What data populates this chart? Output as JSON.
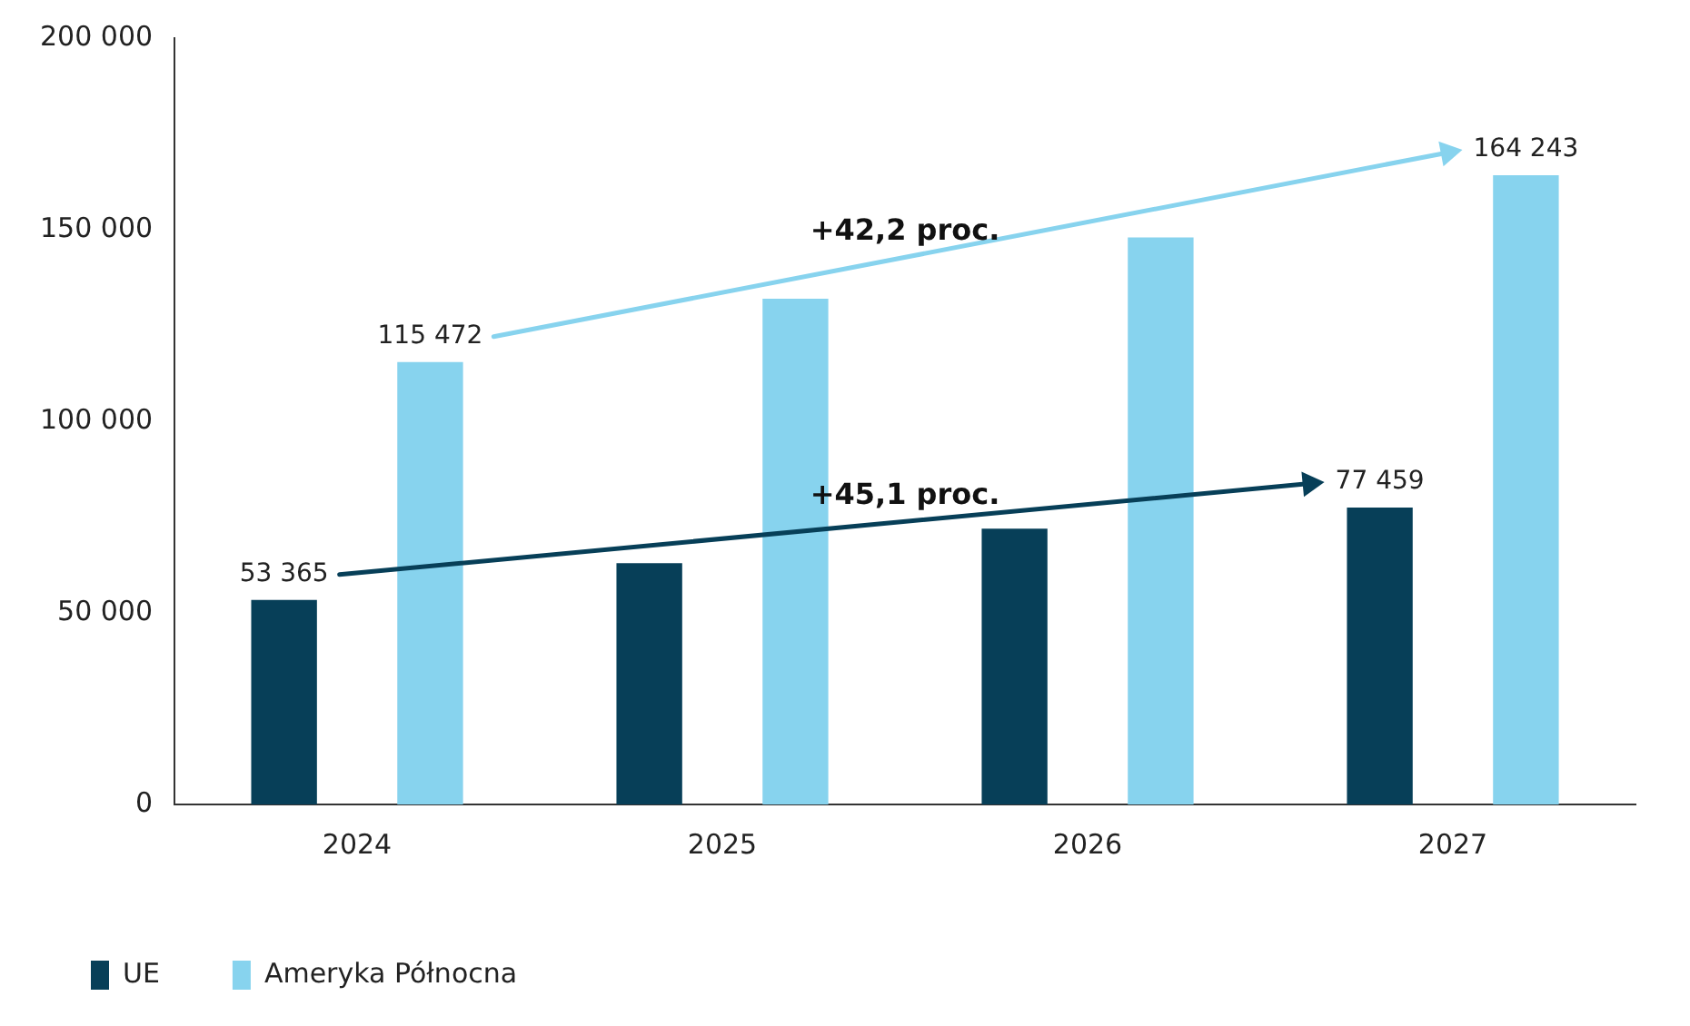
{
  "chart_data": {
    "type": "bar",
    "categories": [
      "2024",
      "2025",
      "2026",
      "2027"
    ],
    "series": [
      {
        "name": "UE",
        "color": "#073f58",
        "values": [
          53365,
          63000,
          72000,
          77459
        ],
        "value_labels": [
          "53 365",
          null,
          null,
          "77 459"
        ]
      },
      {
        "name": "Ameryka Północna",
        "color": "#87d3ee",
        "values": [
          115472,
          132000,
          148000,
          164243
        ],
        "value_labels": [
          "115 472",
          null,
          null,
          "164 243"
        ]
      }
    ],
    "annotations": [
      "+45,1 proc.",
      "+42,2 proc."
    ],
    "ylim": [
      0,
      200000
    ],
    "yticks": [
      {
        "value": 0,
        "label": "0"
      },
      {
        "value": 50000,
        "label": "50 000"
      },
      {
        "value": 100000,
        "label": "100 000"
      },
      {
        "value": 150000,
        "label": "150 000"
      },
      {
        "value": 200000,
        "label": "200 000"
      }
    ],
    "grid": false,
    "legend": "bottom left"
  }
}
